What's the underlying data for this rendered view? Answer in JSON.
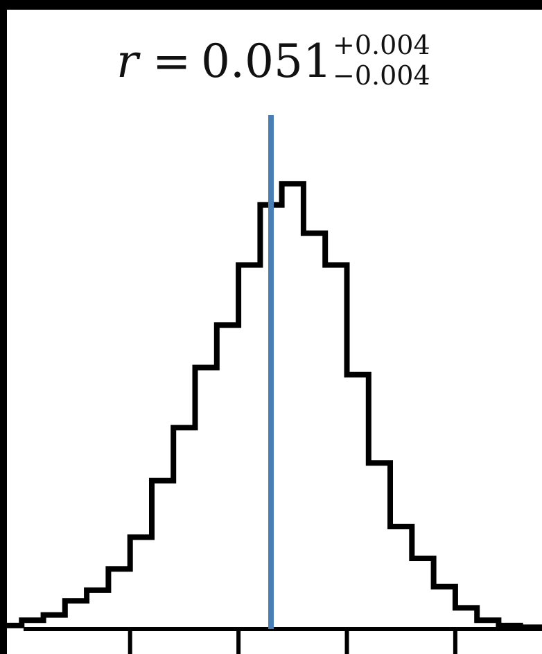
{
  "chart_data": {
    "type": "histogram",
    "title": {
      "symbol": "r",
      "equals": "=",
      "value": "0.051",
      "upper_error": "+0.004",
      "lower_error": "−0.004"
    },
    "xlabel": "",
    "ylabel": "",
    "marker_value": 0.051,
    "marker_color": "#4a7fb5",
    "bin_edges": [
      0.0385,
      0.0395,
      0.0405,
      0.0415,
      0.0425,
      0.0435,
      0.0445,
      0.0455,
      0.0465,
      0.0475,
      0.0485,
      0.0495,
      0.0505,
      0.0515,
      0.0525,
      0.0535,
      0.0545,
      0.0555,
      0.0565,
      0.0575,
      0.0585,
      0.0595,
      0.0605,
      0.0615,
      0.0625,
      0.0635
    ],
    "counts": [
      2,
      5,
      8,
      16,
      22,
      34,
      52,
      84,
      114,
      148,
      172,
      206,
      240,
      252,
      224,
      206,
      144,
      94,
      58,
      40,
      24,
      12,
      5,
      2,
      1
    ],
    "x_ticks": [
      0.0445,
      0.0495,
      0.0545,
      0.0595
    ],
    "xlim": [
      0.0385,
      0.0635
    ],
    "ylim": [
      0,
      265
    ],
    "line_color": "#000000",
    "grid": false
  }
}
